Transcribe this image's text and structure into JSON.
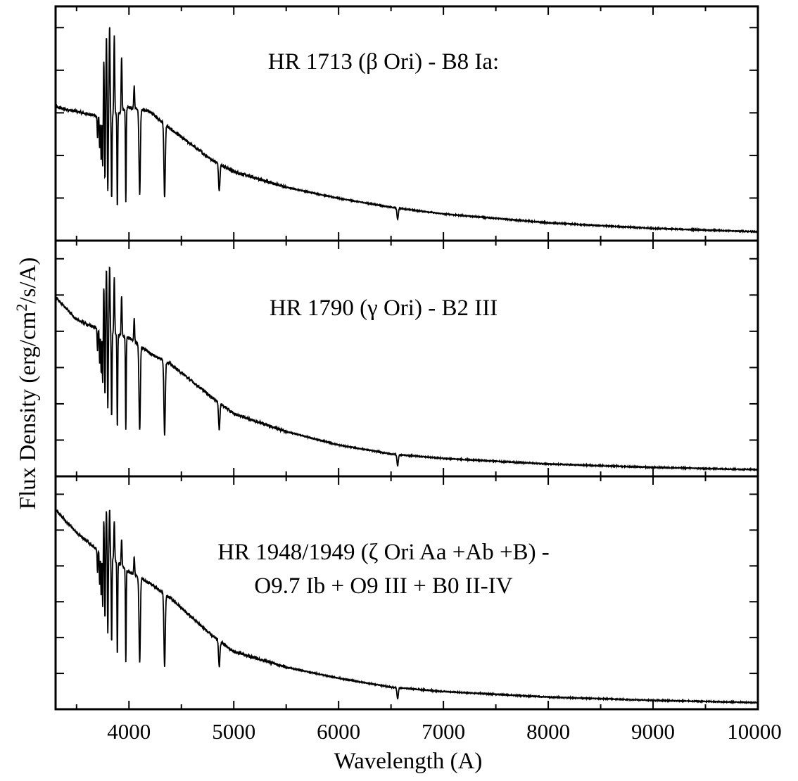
{
  "chart_data": {
    "type": "line",
    "stacked_panels": true,
    "xlabel": "Wavelength (A)",
    "ylabel_parts": [
      "Flux Density (erg/cm",
      "2",
      "/s/A)"
    ],
    "xlim": [
      3300,
      10000
    ],
    "x_ticks": [
      4000,
      5000,
      6000,
      7000,
      8000,
      9000,
      10000
    ],
    "x_tick_labels": [
      "4000",
      "5000",
      "6000",
      "7000",
      "8000",
      "9000",
      "10000"
    ],
    "y_tick_labels_shown": false,
    "grid": false,
    "legend": "none",
    "line_color": "#000000",
    "panels": [
      {
        "label_lines": [
          "HR 1713 (β Ori) - B8 Ia:"
        ],
        "continuum_x": [
          3300,
          3600,
          3700,
          3900,
          4000,
          4200,
          4400,
          4800,
          5000,
          5500,
          6000,
          6500,
          7000,
          8000,
          9000,
          10000
        ],
        "continuum_y": [
          0.6,
          0.57,
          0.56,
          0.57,
          0.6,
          0.58,
          0.5,
          0.36,
          0.31,
          0.24,
          0.19,
          0.15,
          0.12,
          0.08,
          0.055,
          0.04
        ],
        "absorption_lines": [
          {
            "x": 3700,
            "depth": 0.1
          },
          {
            "x": 3720,
            "depth": 0.15
          },
          {
            "x": 3735,
            "depth": 0.2
          },
          {
            "x": 3750,
            "depth": 0.25
          },
          {
            "x": 3771,
            "depth": 0.3
          },
          {
            "x": 3798,
            "depth": 0.35
          },
          {
            "x": 3835,
            "depth": 0.38
          },
          {
            "x": 3889,
            "depth": 0.42
          },
          {
            "x": 3970,
            "depth": 0.42
          },
          {
            "x": 4102,
            "depth": 0.38
          },
          {
            "x": 4340,
            "depth": 0.33
          },
          {
            "x": 4861,
            "depth": 0.12
          },
          {
            "x": 6563,
            "depth": 0.05
          }
        ],
        "emission_spikes": [
          {
            "x": 3760,
            "height": 0.25
          },
          {
            "x": 3785,
            "height": 0.35
          },
          {
            "x": 3815,
            "height": 0.4
          },
          {
            "x": 3860,
            "height": 0.35
          },
          {
            "x": 3930,
            "height": 0.25
          },
          {
            "x": 4050,
            "height": 0.1
          }
        ]
      },
      {
        "label_lines": [
          "HR 1790 (γ Ori) - B2 III"
        ],
        "continuum_x": [
          3300,
          3500,
          3700,
          3900,
          4000,
          4200,
          4400,
          4800,
          5000,
          5500,
          6000,
          6500,
          7000,
          8000,
          9000,
          10000
        ],
        "continuum_y": [
          0.8,
          0.7,
          0.66,
          0.63,
          0.62,
          0.55,
          0.5,
          0.35,
          0.28,
          0.2,
          0.14,
          0.1,
          0.08,
          0.055,
          0.04,
          0.03
        ],
        "absorption_lines": [
          {
            "x": 3700,
            "depth": 0.1
          },
          {
            "x": 3720,
            "depth": 0.15
          },
          {
            "x": 3735,
            "depth": 0.2
          },
          {
            "x": 3750,
            "depth": 0.25
          },
          {
            "x": 3771,
            "depth": 0.3
          },
          {
            "x": 3798,
            "depth": 0.35
          },
          {
            "x": 3835,
            "depth": 0.38
          },
          {
            "x": 3889,
            "depth": 0.42
          },
          {
            "x": 3970,
            "depth": 0.42
          },
          {
            "x": 4102,
            "depth": 0.38
          },
          {
            "x": 4340,
            "depth": 0.33
          },
          {
            "x": 4861,
            "depth": 0.12
          },
          {
            "x": 6563,
            "depth": 0.05
          }
        ],
        "emission_spikes": [
          {
            "x": 3760,
            "height": 0.2
          },
          {
            "x": 3785,
            "height": 0.28
          },
          {
            "x": 3815,
            "height": 0.3
          },
          {
            "x": 3860,
            "height": 0.25
          },
          {
            "x": 3930,
            "height": 0.18
          },
          {
            "x": 4050,
            "height": 0.1
          }
        ]
      },
      {
        "label_lines": [
          "HR 1948/1949 (ζ Ori Aa +Ab +B) -",
          "O9.7 Ib + O9 III + B0 II-IV"
        ],
        "continuum_x": [
          3300,
          3500,
          3700,
          3900,
          4000,
          4200,
          4400,
          4800,
          5000,
          5500,
          6000,
          6500,
          7000,
          8000,
          9000,
          10000
        ],
        "continuum_y": [
          0.9,
          0.8,
          0.72,
          0.66,
          0.62,
          0.57,
          0.5,
          0.33,
          0.26,
          0.19,
          0.14,
          0.1,
          0.08,
          0.055,
          0.04,
          0.03
        ],
        "absorption_lines": [
          {
            "x": 3700,
            "depth": 0.1
          },
          {
            "x": 3720,
            "depth": 0.15
          },
          {
            "x": 3735,
            "depth": 0.2
          },
          {
            "x": 3750,
            "depth": 0.25
          },
          {
            "x": 3771,
            "depth": 0.3
          },
          {
            "x": 3798,
            "depth": 0.35
          },
          {
            "x": 3835,
            "depth": 0.38
          },
          {
            "x": 3889,
            "depth": 0.42
          },
          {
            "x": 3970,
            "depth": 0.42
          },
          {
            "x": 4102,
            "depth": 0.38
          },
          {
            "x": 4340,
            "depth": 0.33
          },
          {
            "x": 4861,
            "depth": 0.12
          },
          {
            "x": 6563,
            "depth": 0.05
          }
        ],
        "emission_spikes": [
          {
            "x": 3760,
            "height": 0.15
          },
          {
            "x": 3785,
            "height": 0.2
          },
          {
            "x": 3815,
            "height": 0.22
          },
          {
            "x": 3860,
            "height": 0.18
          },
          {
            "x": 3930,
            "height": 0.12
          },
          {
            "x": 4050,
            "height": 0.08
          }
        ]
      }
    ]
  }
}
